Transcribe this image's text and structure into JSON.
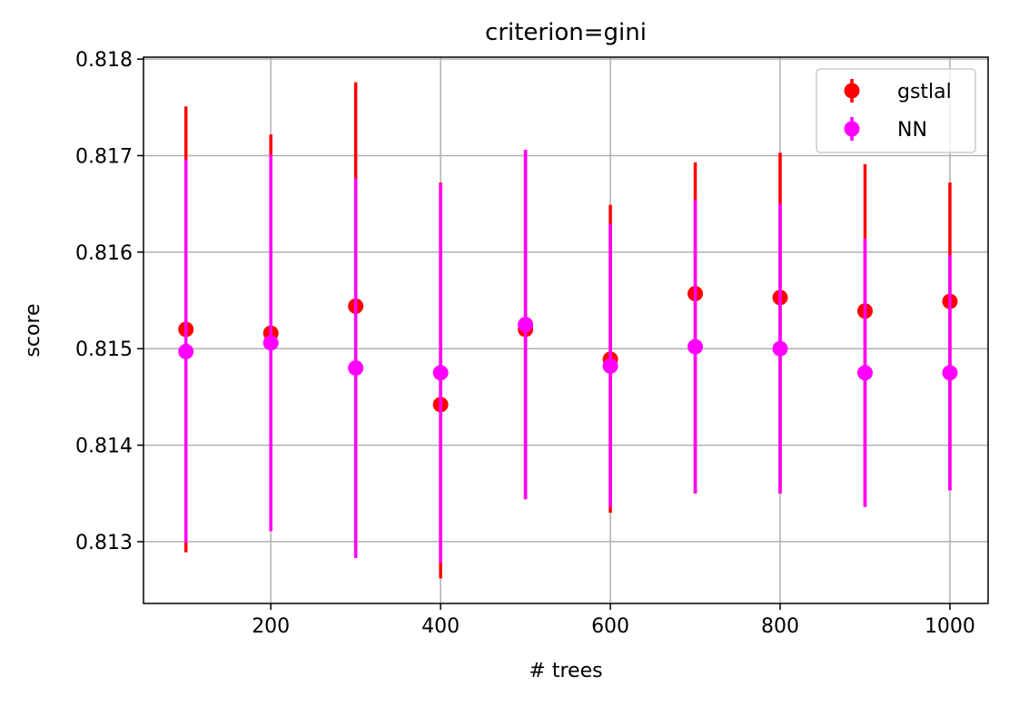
{
  "chart_data": {
    "type": "scatter",
    "title": "criterion=gini",
    "xlabel": "# trees",
    "ylabel": "score",
    "xlim": [
      50,
      1045
    ],
    "ylim": [
      0.81236,
      0.81802
    ],
    "xticks": [
      200,
      400,
      600,
      800,
      1000
    ],
    "xtick_labels": [
      "200",
      "400",
      "600",
      "800",
      "1000"
    ],
    "yticks": [
      0.813,
      0.814,
      0.815,
      0.816,
      0.817,
      0.818
    ],
    "ytick_labels": [
      "0.813",
      "0.814",
      "0.815",
      "0.816",
      "0.817",
      "0.818"
    ],
    "grid": true,
    "legend_position": "top-right",
    "x": [
      100,
      200,
      300,
      400,
      500,
      600,
      700,
      800,
      900,
      1000
    ],
    "series": [
      {
        "name": "gstlal",
        "color": "#ff0000",
        "marker": "circle",
        "values": [
          0.8152,
          0.81516,
          0.81544,
          0.81442,
          0.8152,
          0.81489,
          0.81557,
          0.81553,
          0.81539,
          0.81549
        ],
        "err_low": [
          0.81289,
          0.81311,
          0.81285,
          0.81262,
          0.81344,
          0.8133,
          0.8135,
          0.8135,
          0.81336,
          0.81353
        ],
        "err_high": [
          0.81751,
          0.81722,
          0.81776,
          0.81672,
          0.81706,
          0.81649,
          0.81693,
          0.81703,
          0.81691,
          0.81672
        ]
      },
      {
        "name": "NN",
        "color": "#ff00ff",
        "marker": "circle",
        "values": [
          0.81497,
          0.81506,
          0.8148,
          0.81475,
          0.81525,
          0.81482,
          0.81502,
          0.815,
          0.81475,
          0.81475
        ],
        "err_low": [
          0.81299,
          0.81311,
          0.81283,
          0.81278,
          0.81344,
          0.81336,
          0.8135,
          0.8135,
          0.81336,
          0.81353
        ],
        "err_high": [
          0.81696,
          0.81701,
          0.81677,
          0.81671,
          0.81706,
          0.81629,
          0.81654,
          0.8165,
          0.81614,
          0.81597
        ]
      }
    ]
  }
}
